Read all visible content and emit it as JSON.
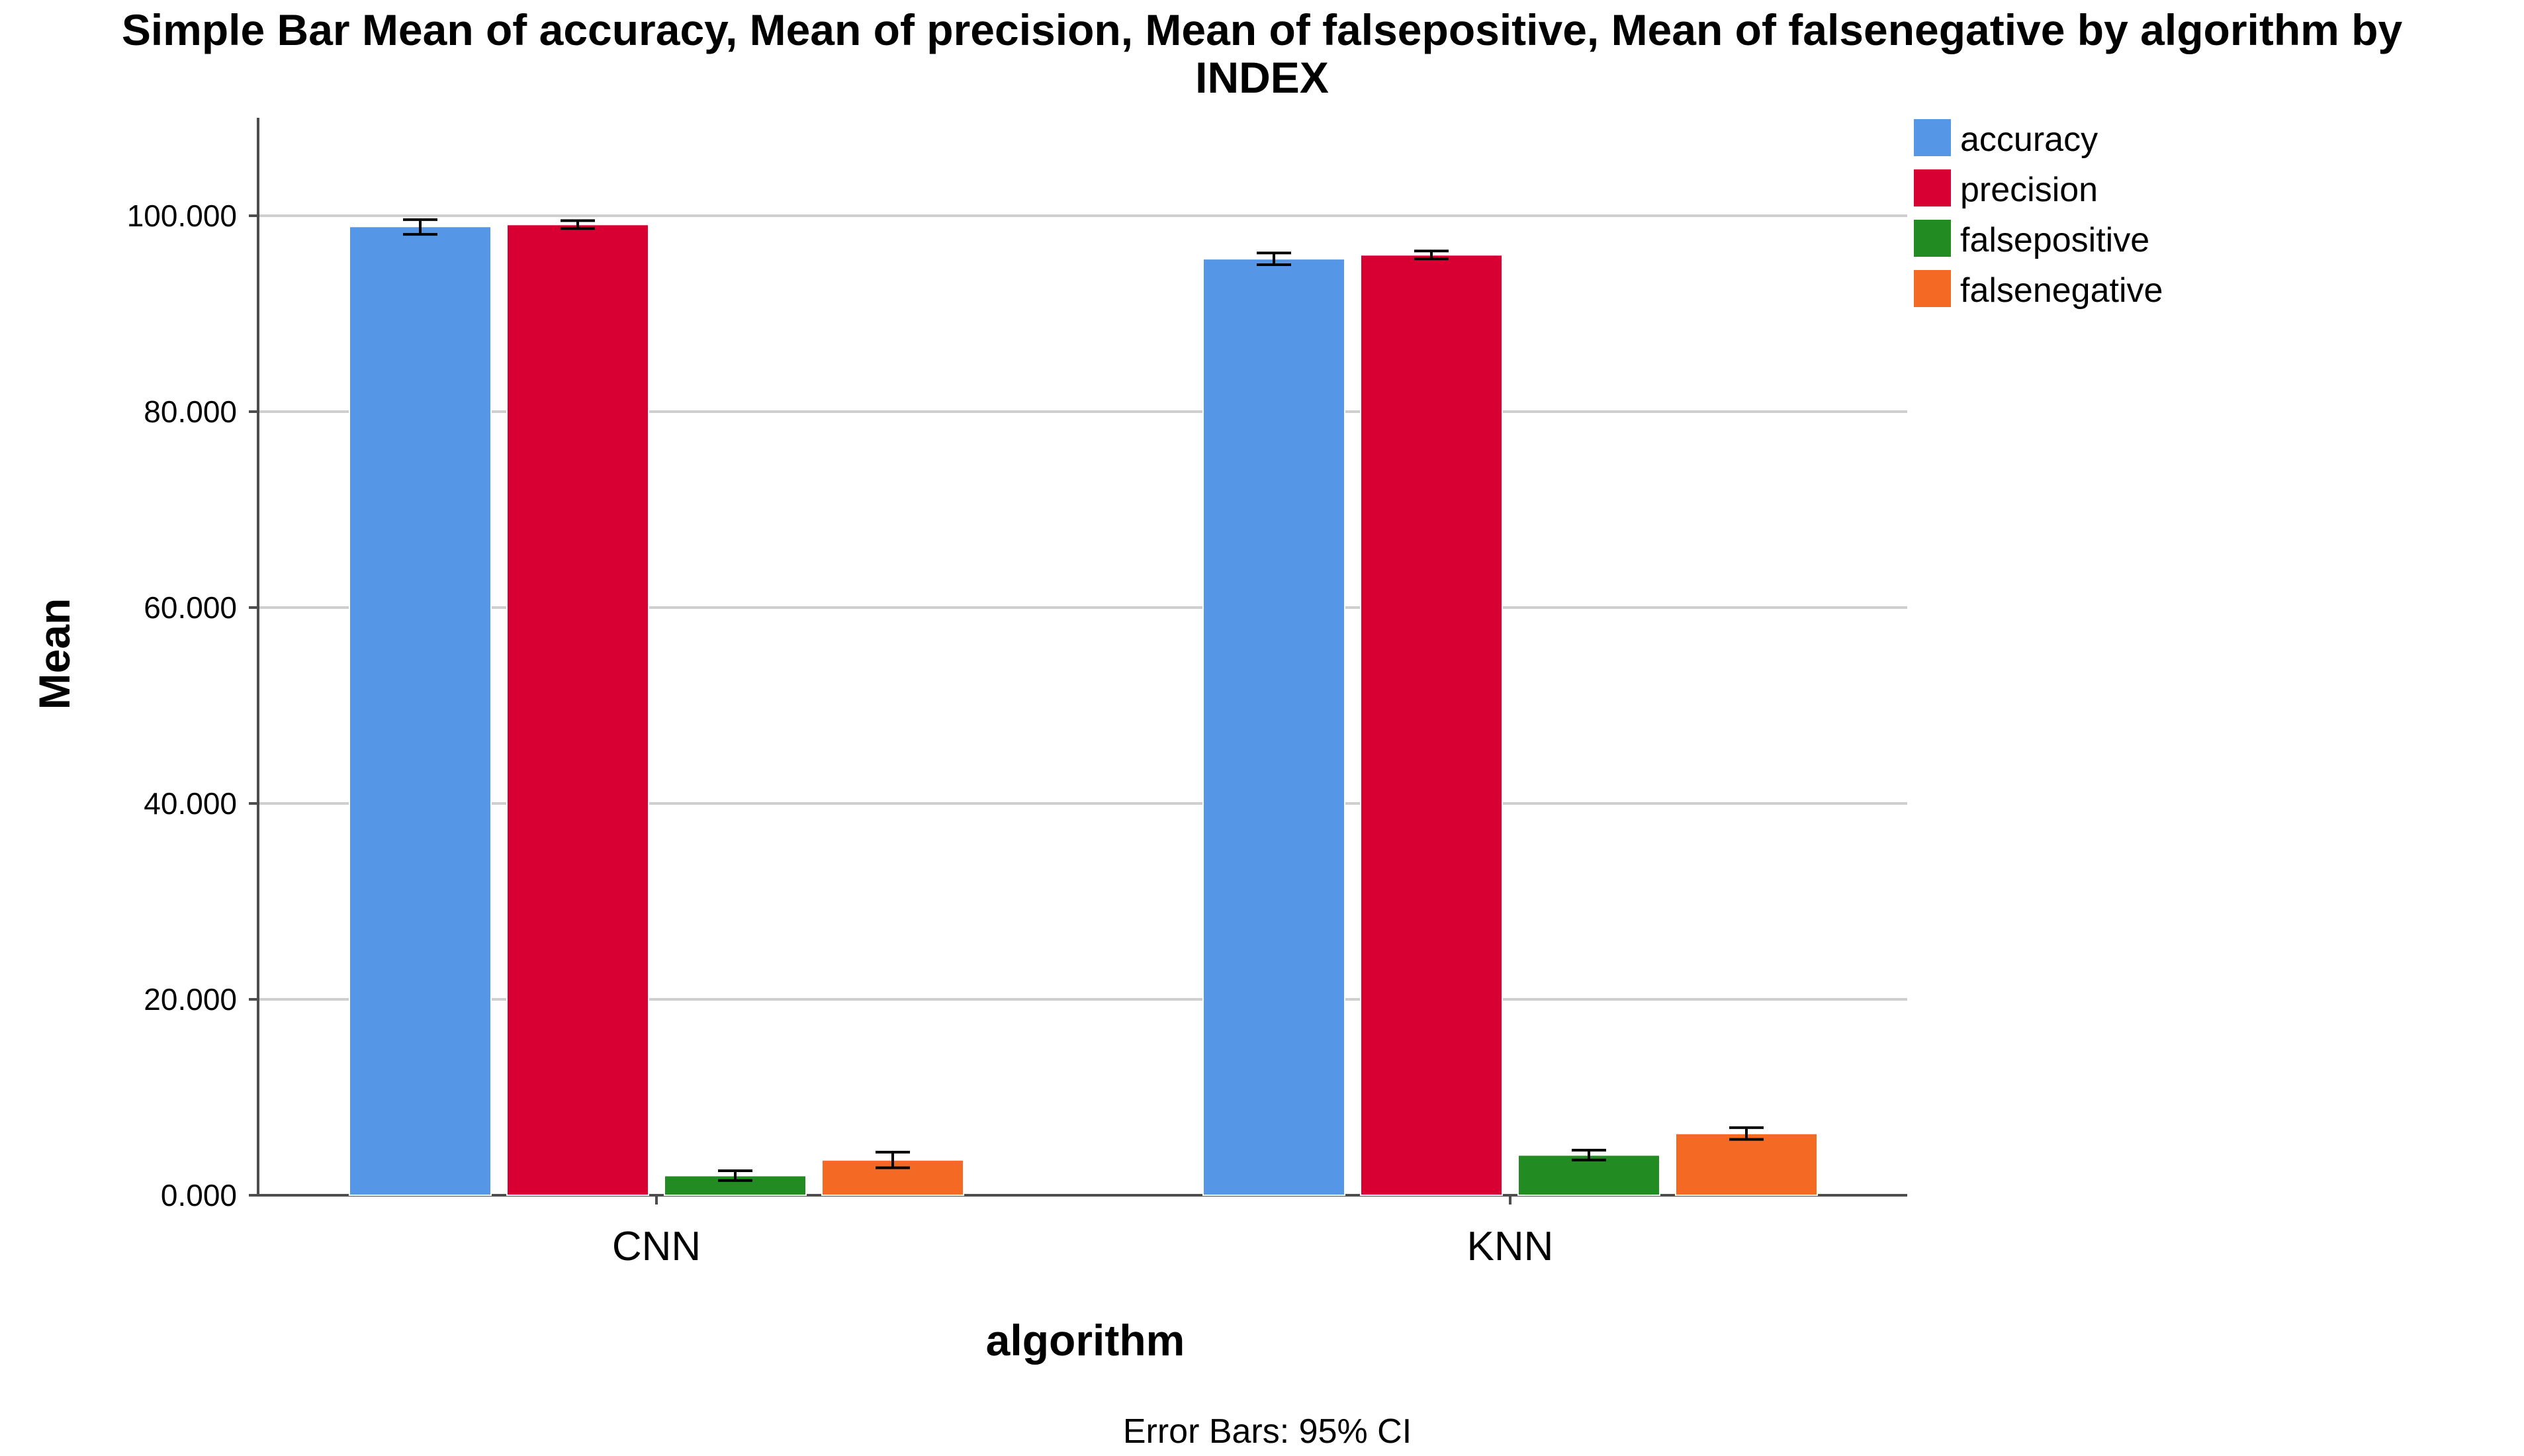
{
  "chart_data": {
    "type": "bar",
    "title_line1": "Simple Bar Mean of accuracy, Mean of precision, Mean of falsepositive, Mean of falsenegative by algorithm by",
    "title_line2": "INDEX",
    "xlabel": "algorithm",
    "ylabel": "Mean",
    "footnote": "Error Bars: 95% CI",
    "categories": [
      "CNN",
      "KNN"
    ],
    "ylim": [
      0,
      110
    ],
    "yticks": [
      0,
      20,
      40,
      60,
      80,
      100
    ],
    "ytick_labels": [
      "0.000",
      "20.000",
      "40.000",
      "60.000",
      "80.000",
      "100.000"
    ],
    "grid": true,
    "legend_position": "top-right",
    "series": [
      {
        "name": "accuracy",
        "color": "#5596E6",
        "values": [
          98.9,
          95.6
        ],
        "ci_low": [
          98.1,
          95.0
        ],
        "ci_high": [
          99.6,
          96.2
        ]
      },
      {
        "name": "precision",
        "color": "#D80033",
        "values": [
          99.1,
          96.0
        ],
        "ci_low": [
          98.7,
          95.6
        ],
        "ci_high": [
          99.5,
          96.4
        ]
      },
      {
        "name": "falsepositive",
        "color": "#228B22",
        "values": [
          2.0,
          4.1
        ],
        "ci_low": [
          1.5,
          3.6
        ],
        "ci_high": [
          2.5,
          4.6
        ]
      },
      {
        "name": "falsenegative",
        "color": "#F46A25",
        "values": [
          3.6,
          6.3
        ],
        "ci_low": [
          2.8,
          5.7
        ],
        "ci_high": [
          4.4,
          6.9
        ]
      }
    ]
  }
}
